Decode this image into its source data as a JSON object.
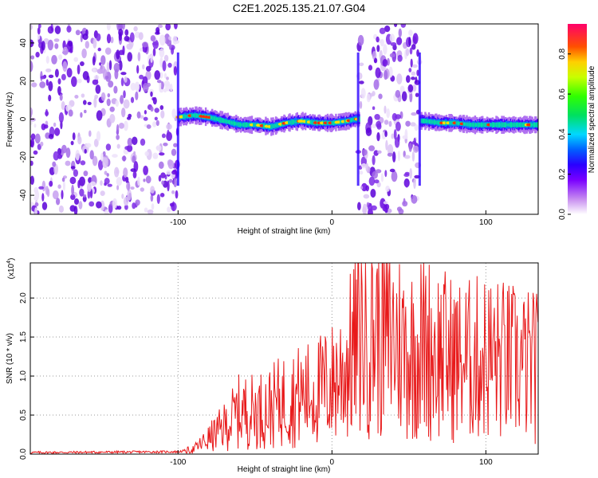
{
  "title": "C2E1.2025.135.21.07.G04",
  "chart_data": [
    {
      "type": "heatmap",
      "title": "C2E1.2025.135.21.07.G04",
      "xlabel": "Height of straight line (km)",
      "ylabel": "Frequency (Hz)",
      "xlim": [
        -196,
        134
      ],
      "ylim": [
        -50,
        50
      ],
      "x_ticks": [
        -100,
        0,
        100
      ],
      "y_ticks": [
        -40,
        -20,
        0,
        20,
        40
      ],
      "colorbar": {
        "label": "Normalized spectral amplitude",
        "range": [
          0.0,
          0.95
        ],
        "ticks": [
          0.0,
          0.2,
          0.4,
          0.6,
          0.8
        ],
        "tick_labels": [
          "0.0",
          "0.2",
          "0.4",
          "0.6",
          "0.8"
        ]
      },
      "description_regions": [
        {
          "x_range": [
            -196,
            -100
          ],
          "kind": "broadband noise"
        },
        {
          "x_range": [
            -100,
            17
          ],
          "kind": "signal band near 0 Hz"
        },
        {
          "x_range": [
            17,
            57
          ],
          "kind": "broadband noise"
        },
        {
          "x_range": [
            57,
            134
          ],
          "kind": "signal band near 0 Hz"
        }
      ],
      "signal_trace": {
        "x": [
          -100,
          -90,
          -80,
          -70,
          -60,
          -50,
          -40,
          -30,
          -20,
          -10,
          0,
          10,
          15,
          60,
          70,
          80,
          90,
          100,
          110,
          120,
          134
        ],
        "y": [
          1,
          2,
          1,
          -1,
          -3,
          -3,
          -4,
          -2,
          -1,
          -2,
          -2,
          -1,
          0,
          -1,
          -2,
          -2,
          -3,
          -3,
          -3,
          -3,
          -3
        ]
      }
    },
    {
      "type": "line",
      "xlabel": "Height of straight line (km)",
      "ylabel": "SNR (10 * v/v)",
      "y_multiplier": "(x10",
      "y_multiplier_exp": "4",
      "y_multiplier_close": ")",
      "xlim": [
        -196,
        134
      ],
      "ylim": [
        0.0,
        2.45
      ],
      "x_ticks": [
        -100,
        0,
        100
      ],
      "y_ticks": [
        0.0,
        0.5,
        1.0,
        1.5,
        2.0
      ],
      "y_tick_labels": [
        "0.0",
        "0.5",
        "1.0",
        "1.5",
        "2.0"
      ],
      "color": "#e8191a",
      "series_envelope": {
        "x": [
          -196,
          -100,
          -90,
          -80,
          -70,
          -60,
          -50,
          -40,
          -30,
          -20,
          -10,
          0,
          10,
          20,
          30,
          40,
          50,
          60,
          70,
          80,
          90,
          100,
          110,
          120,
          134
        ],
        "y": [
          0.02,
          0.03,
          0.06,
          0.2,
          0.35,
          0.55,
          0.55,
          0.6,
          0.7,
          0.75,
          0.8,
          0.9,
          1.15,
          1.6,
          1.6,
          1.5,
          1.3,
          1.4,
          1.3,
          1.2,
          1.2,
          1.25,
          1.2,
          1.15,
          1.1
        ]
      }
    }
  ]
}
